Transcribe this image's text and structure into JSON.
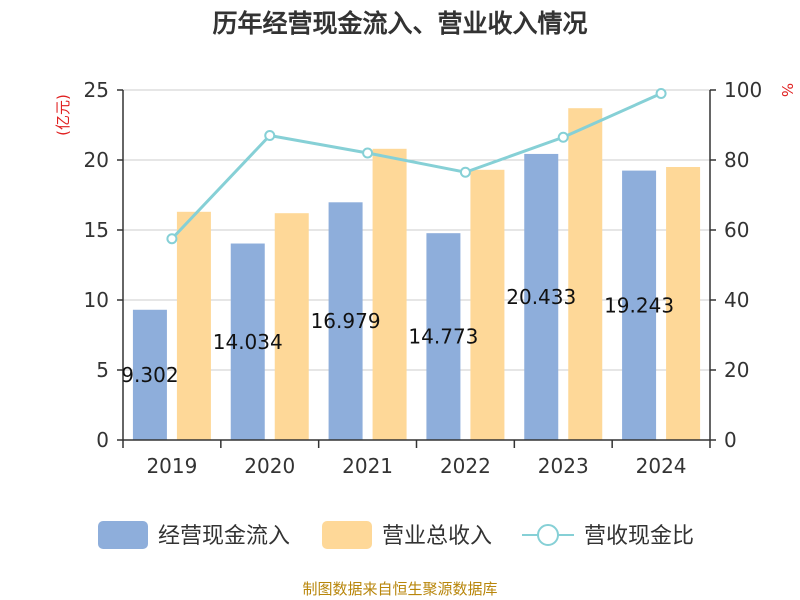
{
  "chart_data": {
    "type": "bar",
    "title": "历年经营现金流入、营业收入情况",
    "categories": [
      "2019",
      "2020",
      "2021",
      "2022",
      "2023",
      "2024"
    ],
    "series": [
      {
        "name": "经营现金流入",
        "kind": "bar",
        "axis": "left",
        "color": "#8eaedb",
        "values": [
          9.302,
          14.034,
          16.979,
          14.773,
          20.433,
          19.243
        ],
        "labels": [
          "9.302",
          "14.034",
          "16.979",
          "14.773",
          "20.433",
          "19.243"
        ]
      },
      {
        "name": "营业总收入",
        "kind": "bar",
        "axis": "left",
        "color": "#fed898",
        "values": [
          16.3,
          16.2,
          20.8,
          19.3,
          23.7,
          19.5
        ]
      },
      {
        "name": "营收现金比",
        "kind": "line",
        "axis": "right",
        "color": "#86d0d6",
        "values": [
          57.5,
          87,
          82,
          76.5,
          86.5,
          99
        ]
      }
    ],
    "y_left": {
      "unit": "(亿元)",
      "min": 0,
      "max": 25,
      "ticks": [
        "0",
        "5",
        "10",
        "15",
        "20",
        "25"
      ]
    },
    "y_right": {
      "unit": "%",
      "min": 0,
      "max": 100,
      "ticks": [
        "0",
        "20",
        "40",
        "60",
        "80",
        "100"
      ]
    },
    "grid": true,
    "legend_position": "bottom"
  },
  "footer": "制图数据来自恒生聚源数据库"
}
